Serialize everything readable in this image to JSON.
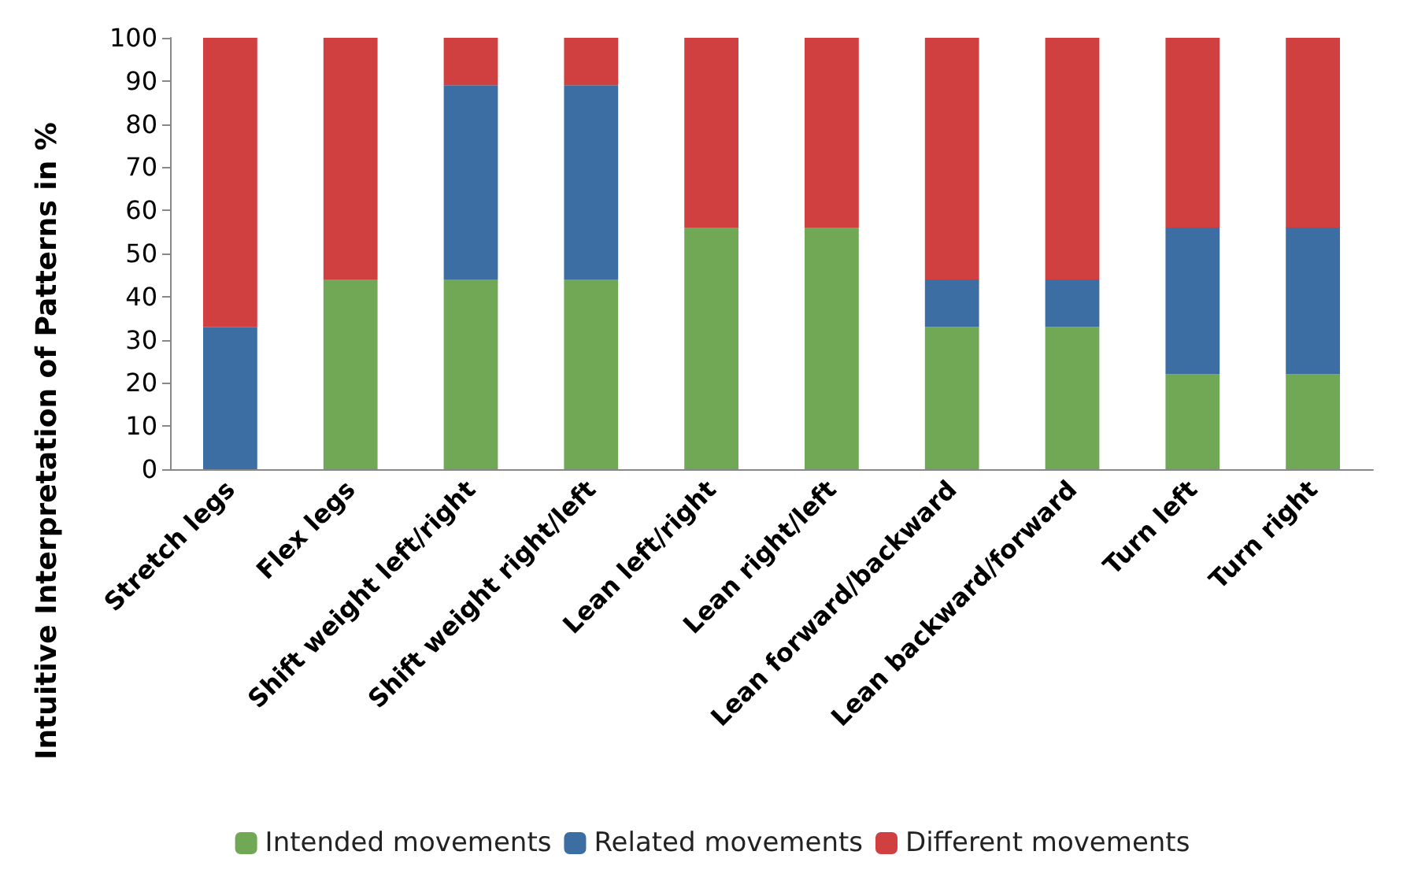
{
  "chart_data": {
    "type": "bar",
    "stacked": true,
    "ylabel": "Intuitive Interpretation of Patterns in %",
    "categories": [
      "Stretch legs",
      "Flex legs",
      "Shift weight left/right",
      "Shift weight right/left",
      "Lean left/right",
      "Lean right/left",
      "Lean forward/backward",
      "Lean backward/forward",
      "Turn left",
      "Turn right"
    ],
    "series": [
      {
        "name": "Intended movements",
        "color": "#70a855",
        "values": [
          0,
          44,
          44,
          44,
          56,
          56,
          33,
          33,
          22,
          22
        ]
      },
      {
        "name": "Related movements",
        "color": "#3c6ea3",
        "values": [
          33,
          0,
          45,
          45,
          0,
          0,
          11,
          11,
          34,
          34
        ]
      },
      {
        "name": "Different movements",
        "color": "#d04040",
        "values": [
          67,
          56,
          11,
          11,
          44,
          44,
          56,
          56,
          44,
          44
        ]
      }
    ],
    "ylim": [
      0,
      100
    ],
    "yticks": [
      0,
      10,
      20,
      30,
      40,
      50,
      60,
      70,
      80,
      90,
      100
    ],
    "grid": false,
    "legend": "bottom"
  }
}
